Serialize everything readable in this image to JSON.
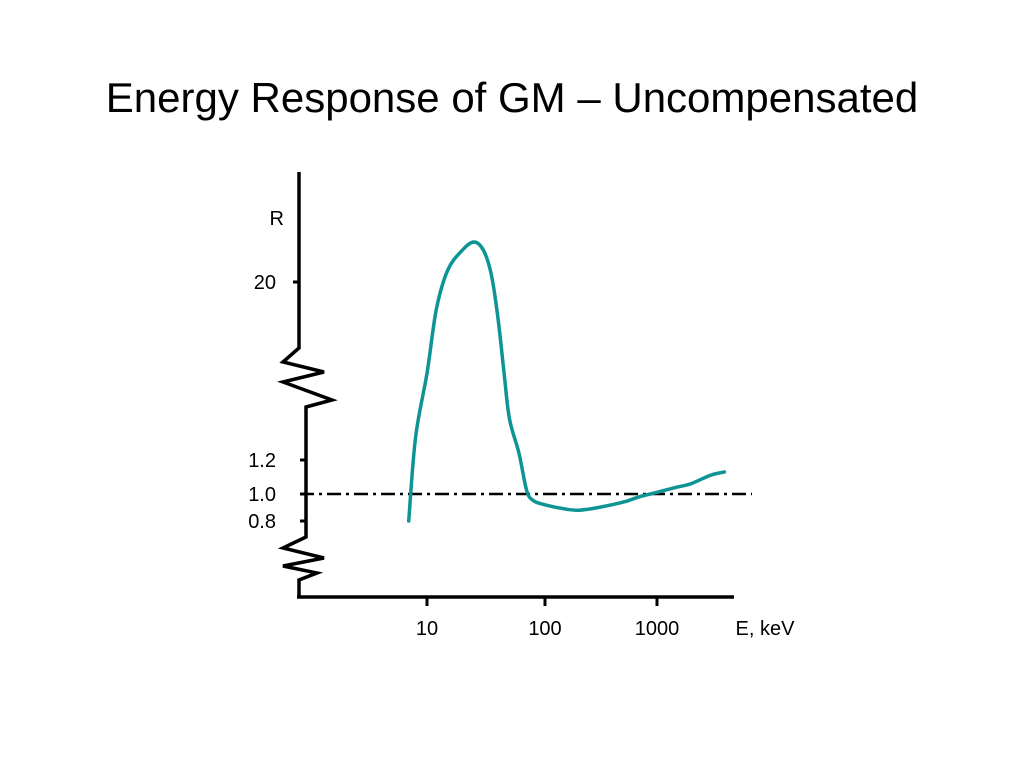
{
  "slide": {
    "title": "Energy Response of GM – Uncompensated"
  },
  "colors": {
    "curve": "#0e9494",
    "axis": "#000000",
    "background": "#ffffff"
  },
  "chart_data": {
    "type": "line",
    "title": "Energy Response of GM – Uncompensated",
    "xlabel": "E, keV",
    "ylabel": "R",
    "xscale": "log",
    "yscale": "broken",
    "x_ticks": [
      10,
      100,
      1000
    ],
    "x_tick_labels": [
      "10",
      "100",
      "1000"
    ],
    "y_ticks": [
      0.8,
      1.0,
      1.2,
      20
    ],
    "y_tick_labels": [
      "0.8",
      "1.0",
      "1.2",
      "20"
    ],
    "reference_line": {
      "y": 1.0,
      "style": "dash-dot"
    },
    "axis_breaks": [
      "between 1.2 and 20",
      "below 0.8"
    ],
    "grid": false,
    "legend": "none",
    "series": [
      {
        "x": [
          7,
          8,
          10,
          12,
          15,
          20,
          25,
          30,
          35,
          40,
          45,
          50,
          60,
          70,
          80,
          100,
          150,
          200,
          300,
          500,
          700,
          1000,
          1500,
          2000,
          3000,
          4000
        ],
        "y": [
          0.8,
          3,
          10,
          17,
          21.5,
          24,
          25,
          24,
          21,
          16,
          10,
          5,
          1.5,
          1.02,
          0.95,
          0.92,
          0.89,
          0.88,
          0.9,
          0.94,
          0.98,
          1.01,
          1.04,
          1.06,
          1.11,
          1.13
        ]
      }
    ]
  }
}
